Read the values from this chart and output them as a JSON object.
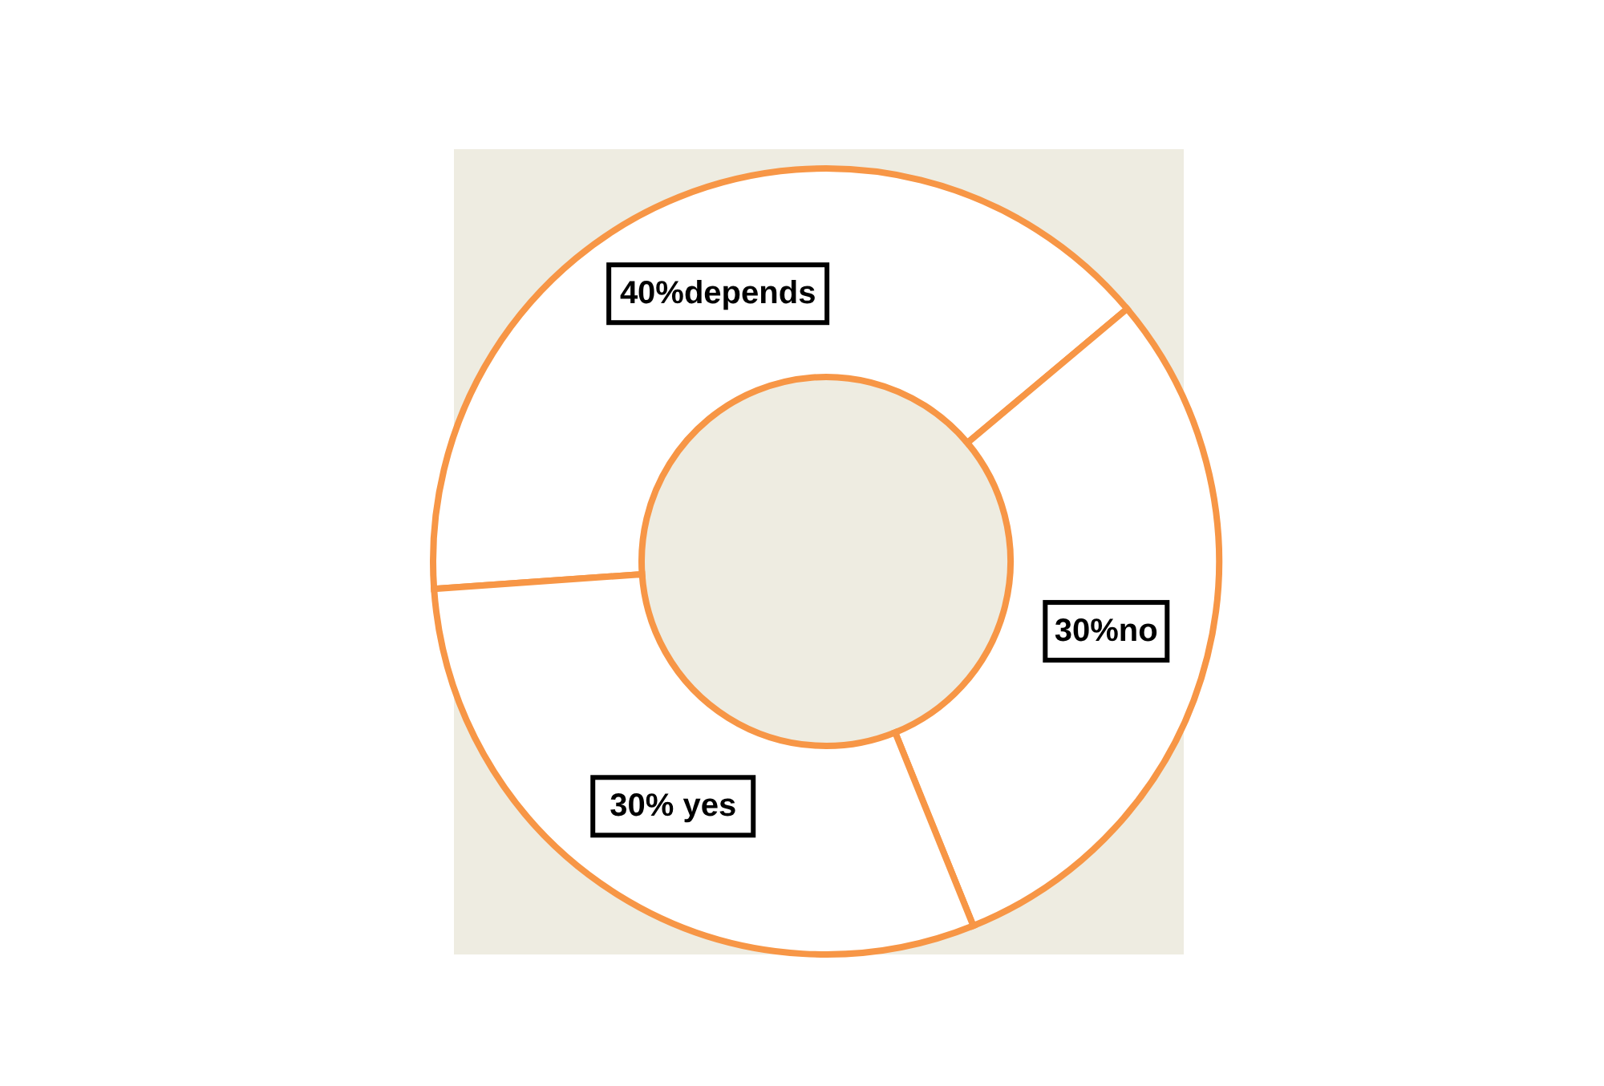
{
  "chart_data": {
    "type": "donut",
    "categories": [
      "40%depends",
      "30%no",
      "30% yes"
    ],
    "values": [
      40,
      30,
      30
    ],
    "colors": [
      "#ffffff",
      "#ffffff",
      "#ffffff"
    ]
  }
}
